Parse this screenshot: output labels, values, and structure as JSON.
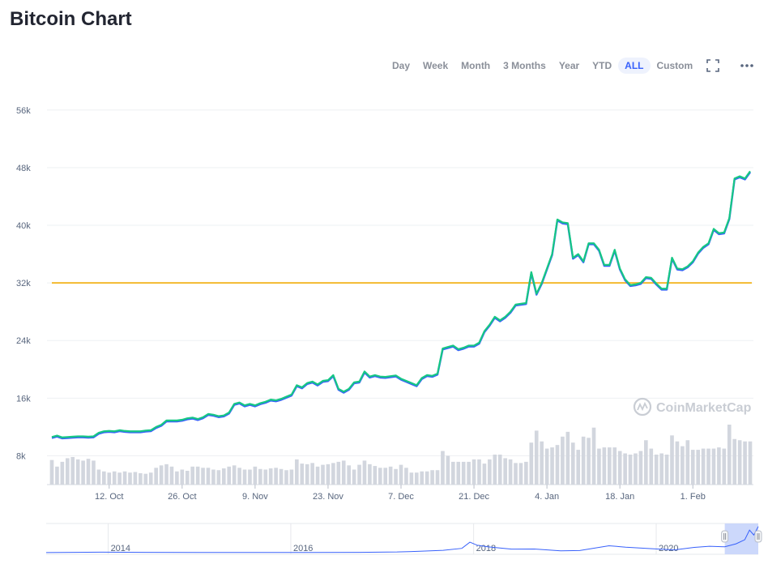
{
  "header": {
    "title": "Bitcoin Chart"
  },
  "toolbar": {
    "ranges": [
      "Day",
      "Week",
      "Month",
      "3 Months",
      "Year",
      "YTD",
      "ALL",
      "Custom"
    ],
    "active_range": "ALL",
    "fullscreen_icon": "expand-icon",
    "more_icon": "more-horizontal-icon"
  },
  "watermark": {
    "text": "CoinMarketCap"
  },
  "colors": {
    "price_line_top": "#16c784",
    "price_line_bottom": "#3861fb",
    "reference_line": "#f3ba2f",
    "volume_bar": "#d2d6de",
    "grid": "#eef0f3",
    "axis_text": "#58667e",
    "watermark": "#c9cdd4",
    "navigator_line": "#3861fb",
    "navigator_selection": "#c6d4fb"
  },
  "chart_data": {
    "type": "line",
    "series": [
      {
        "kind": "price",
        "x": [
          "2020-10-01",
          "2020-10-02",
          "2020-10-03",
          "2020-10-04",
          "2020-10-05",
          "2020-10-06",
          "2020-10-07",
          "2020-10-08",
          "2020-10-09",
          "2020-10-10",
          "2020-10-11",
          "2020-10-12",
          "2020-10-13",
          "2020-10-14",
          "2020-10-15",
          "2020-10-16",
          "2020-10-17",
          "2020-10-18",
          "2020-10-19",
          "2020-10-20",
          "2020-10-21",
          "2020-10-22",
          "2020-10-23",
          "2020-10-24",
          "2020-10-25",
          "2020-10-26",
          "2020-10-27",
          "2020-10-28",
          "2020-10-29",
          "2020-10-30",
          "2020-10-31",
          "2020-11-01",
          "2020-11-02",
          "2020-11-03",
          "2020-11-04",
          "2020-11-05",
          "2020-11-06",
          "2020-11-07",
          "2020-11-08",
          "2020-11-09",
          "2020-11-10",
          "2020-11-11",
          "2020-11-12",
          "2020-11-13",
          "2020-11-14",
          "2020-11-15",
          "2020-11-16",
          "2020-11-17",
          "2020-11-18",
          "2020-11-19",
          "2020-11-20",
          "2020-11-21",
          "2020-11-22",
          "2020-11-23",
          "2020-11-24",
          "2020-11-25",
          "2020-11-26",
          "2020-11-27",
          "2020-11-28",
          "2020-11-29",
          "2020-11-30",
          "2020-12-01",
          "2020-12-02",
          "2020-12-03",
          "2020-12-04",
          "2020-12-05",
          "2020-12-06",
          "2020-12-07",
          "2020-12-08",
          "2020-12-09",
          "2020-12-10",
          "2020-12-11",
          "2020-12-12",
          "2020-12-13",
          "2020-12-14",
          "2020-12-15",
          "2020-12-16",
          "2020-12-17",
          "2020-12-18",
          "2020-12-19",
          "2020-12-20",
          "2020-12-21",
          "2020-12-22",
          "2020-12-23",
          "2020-12-24",
          "2020-12-25",
          "2020-12-26",
          "2020-12-27",
          "2020-12-28",
          "2020-12-29",
          "2020-12-30",
          "2020-12-31",
          "2021-01-01",
          "2021-01-02",
          "2021-01-03",
          "2021-01-04",
          "2021-01-05",
          "2021-01-06",
          "2021-01-07",
          "2021-01-08",
          "2021-01-09",
          "2021-01-10",
          "2021-01-11",
          "2021-01-12",
          "2021-01-13",
          "2021-01-14",
          "2021-01-15",
          "2021-01-16",
          "2021-01-17",
          "2021-01-18",
          "2021-01-19",
          "2021-01-20",
          "2021-01-21",
          "2021-01-22",
          "2021-01-23",
          "2021-01-24",
          "2021-01-25",
          "2021-01-26",
          "2021-01-27",
          "2021-01-28",
          "2021-01-29",
          "2021-01-30",
          "2021-01-31",
          "2021-02-01",
          "2021-02-02",
          "2021-02-03",
          "2021-02-04",
          "2021-02-05",
          "2021-02-06",
          "2021-02-07",
          "2021-02-08",
          "2021-02-09",
          "2021-02-10",
          "2021-02-11",
          "2021-02-12"
        ],
        "values": [
          10600,
          10800,
          10550,
          10600,
          10650,
          10700,
          10700,
          10650,
          10700,
          11200,
          11400,
          11450,
          11400,
          11550,
          11450,
          11400,
          11400,
          11400,
          11500,
          11550,
          12000,
          12300,
          12900,
          12900,
          12900,
          13000,
          13200,
          13300,
          13100,
          13350,
          13800,
          13700,
          13500,
          13600,
          14000,
          15200,
          15400,
          15000,
          15200,
          15000,
          15300,
          15500,
          15800,
          15700,
          15900,
          16200,
          16500,
          17800,
          17500,
          18100,
          18300,
          17900,
          18400,
          18500,
          19200,
          17300,
          16900,
          17300,
          18200,
          18300,
          19700,
          19000,
          19200,
          19000,
          18950,
          19050,
          19150,
          18700,
          18400,
          18100,
          17800,
          18800,
          19200,
          19100,
          19400,
          22900,
          23100,
          23300,
          22800,
          23000,
          23300,
          23300,
          23700,
          25300,
          26200,
          27300,
          26800,
          27300,
          28000,
          29000,
          29100,
          29200,
          33500,
          30500,
          32000,
          34000,
          36000,
          40800,
          40400,
          40300,
          35500,
          36000,
          35000,
          37500,
          37500,
          36600,
          34500,
          34500,
          36600,
          34000,
          32500,
          31700,
          31800,
          32000,
          32800,
          32700,
          31900,
          31200,
          31200,
          35500,
          34000,
          33900,
          34300,
          35000,
          36200,
          37000,
          37500,
          39500,
          38900,
          39000,
          41000,
          46500,
          46800,
          46500,
          47500
        ]
      },
      {
        "kind": "volume",
        "x": [
          "2020-10-01",
          "2020-10-02",
          "2020-10-03",
          "2020-10-04",
          "2020-10-05",
          "2020-10-06",
          "2020-10-07",
          "2020-10-08",
          "2020-10-09",
          "2020-10-10",
          "2020-10-11",
          "2020-10-12",
          "2020-10-13",
          "2020-10-14",
          "2020-10-15",
          "2020-10-16",
          "2020-10-17",
          "2020-10-18",
          "2020-10-19",
          "2020-10-20",
          "2020-10-21",
          "2020-10-22",
          "2020-10-23",
          "2020-10-24",
          "2020-10-25",
          "2020-10-26",
          "2020-10-27",
          "2020-10-28",
          "2020-10-29",
          "2020-10-30",
          "2020-10-31",
          "2020-11-01",
          "2020-11-02",
          "2020-11-03",
          "2020-11-04",
          "2020-11-05",
          "2020-11-06",
          "2020-11-07",
          "2020-11-08",
          "2020-11-09",
          "2020-11-10",
          "2020-11-11",
          "2020-11-12",
          "2020-11-13",
          "2020-11-14",
          "2020-11-15",
          "2020-11-16",
          "2020-11-17",
          "2020-11-18",
          "2020-11-19",
          "2020-11-20",
          "2020-11-21",
          "2020-11-22",
          "2020-11-23",
          "2020-11-24",
          "2020-11-25",
          "2020-11-26",
          "2020-11-27",
          "2020-11-28",
          "2020-11-29",
          "2020-11-30",
          "2020-12-01",
          "2020-12-02",
          "2020-12-03",
          "2020-12-04",
          "2020-12-05",
          "2020-12-06",
          "2020-12-07",
          "2020-12-08",
          "2020-12-09",
          "2020-12-10",
          "2020-12-11",
          "2020-12-12",
          "2020-12-13",
          "2020-12-14",
          "2020-12-15",
          "2020-12-16",
          "2020-12-17",
          "2020-12-18",
          "2020-12-19",
          "2020-12-20",
          "2020-12-21",
          "2020-12-22",
          "2020-12-23",
          "2020-12-24",
          "2020-12-25",
          "2020-12-26",
          "2020-12-27",
          "2020-12-28",
          "2020-12-29",
          "2020-12-30",
          "2020-12-31",
          "2021-01-01",
          "2021-01-02",
          "2021-01-03",
          "2021-01-04",
          "2021-01-05",
          "2021-01-06",
          "2021-01-07",
          "2021-01-08",
          "2021-01-09",
          "2021-01-10",
          "2021-01-11",
          "2021-01-12",
          "2021-01-13",
          "2021-01-14",
          "2021-01-15",
          "2021-01-16",
          "2021-01-17",
          "2021-01-18",
          "2021-01-19",
          "2021-01-20",
          "2021-01-21",
          "2021-01-22",
          "2021-01-23",
          "2021-01-24",
          "2021-01-25",
          "2021-01-26",
          "2021-01-27",
          "2021-01-28",
          "2021-01-29",
          "2021-01-30",
          "2021-01-31",
          "2021-02-01",
          "2021-02-02",
          "2021-02-03",
          "2021-02-04",
          "2021-02-05",
          "2021-02-06",
          "2021-02-07",
          "2021-02-08",
          "2021-02-09",
          "2021-02-10",
          "2021-02-11",
          "2021-02-12"
        ],
        "values": [
          0.41,
          0.3,
          0.38,
          0.44,
          0.46,
          0.42,
          0.4,
          0.43,
          0.4,
          0.25,
          0.22,
          0.2,
          0.22,
          0.2,
          0.22,
          0.2,
          0.21,
          0.19,
          0.18,
          0.2,
          0.28,
          0.32,
          0.34,
          0.3,
          0.22,
          0.25,
          0.23,
          0.3,
          0.3,
          0.28,
          0.28,
          0.25,
          0.24,
          0.27,
          0.3,
          0.32,
          0.28,
          0.25,
          0.25,
          0.3,
          0.26,
          0.25,
          0.27,
          0.28,
          0.26,
          0.24,
          0.25,
          0.42,
          0.35,
          0.34,
          0.36,
          0.3,
          0.33,
          0.34,
          0.36,
          0.38,
          0.4,
          0.32,
          0.25,
          0.33,
          0.4,
          0.34,
          0.31,
          0.28,
          0.28,
          0.3,
          0.26,
          0.33,
          0.28,
          0.2,
          0.2,
          0.22,
          0.22,
          0.24,
          0.24,
          0.56,
          0.48,
          0.38,
          0.38,
          0.38,
          0.38,
          0.42,
          0.42,
          0.35,
          0.42,
          0.5,
          0.5,
          0.44,
          0.42,
          0.36,
          0.36,
          0.38,
          0.7,
          0.9,
          0.72,
          0.6,
          0.62,
          0.66,
          0.8,
          0.88,
          0.7,
          0.58,
          0.8,
          0.78,
          0.95,
          0.6,
          0.62,
          0.62,
          0.62,
          0.56,
          0.52,
          0.5,
          0.52,
          0.56,
          0.74,
          0.6,
          0.5,
          0.52,
          0.5,
          0.82,
          0.72,
          0.64,
          0.74,
          0.58,
          0.58,
          0.6,
          0.6,
          0.6,
          0.62,
          0.6,
          1.0,
          0.76,
          0.74,
          0.72,
          0.72
        ]
      }
    ],
    "reference_line": 32000,
    "y_ticks": [
      8000,
      16000,
      24000,
      32000,
      40000,
      48000,
      56000
    ],
    "y_tick_labels": [
      "8k",
      "16k",
      "24k",
      "32k",
      "40k",
      "48k",
      "56k"
    ],
    "x_tick_labels": [
      "12. Oct",
      "26. Oct",
      "9. Nov",
      "23. Nov",
      "7. Dec",
      "21. Dec",
      "4. Jan",
      "18. Jan",
      "1. Feb"
    ],
    "x_tick_dates": [
      "2020-10-12",
      "2020-10-26",
      "2020-11-09",
      "2020-11-23",
      "2020-12-07",
      "2020-12-21",
      "2021-01-04",
      "2021-01-18",
      "2021-02-01"
    ],
    "ylim": [
      4000,
      58000
    ],
    "grid": true,
    "navigator": {
      "tick_labels": [
        "2014",
        "2016",
        "2018",
        "2020"
      ],
      "tick_dates": [
        "2014-01-01",
        "2016-01-01",
        "2018-01-01",
        "2020-01-01"
      ],
      "x": [
        "2013-04-28",
        "2013-12-01",
        "2014-06-01",
        "2015-01-01",
        "2015-08-01",
        "2016-03-01",
        "2016-10-01",
        "2017-03-01",
        "2017-06-01",
        "2017-09-01",
        "2017-11-15",
        "2017-12-17",
        "2018-01-15",
        "2018-03-01",
        "2018-06-01",
        "2018-09-01",
        "2018-12-15",
        "2019-03-01",
        "2019-06-26",
        "2019-09-01",
        "2019-12-15",
        "2020-03-13",
        "2020-06-01",
        "2020-08-01",
        "2020-10-01",
        "2020-11-15",
        "2020-12-20",
        "2021-01-08",
        "2021-01-25",
        "2021-02-12"
      ],
      "values": [
        135,
        1000,
        630,
        315,
        280,
        430,
        615,
        1200,
        2500,
        4300,
        7800,
        19000,
        13500,
        10500,
        6500,
        6600,
        3300,
        3900,
        12500,
        10000,
        7200,
        4900,
        9500,
        11500,
        10600,
        16000,
        23500,
        41000,
        32000,
        47500
      ],
      "selected_range": [
        "2020-10-01",
        "2021-02-12"
      ]
    }
  }
}
